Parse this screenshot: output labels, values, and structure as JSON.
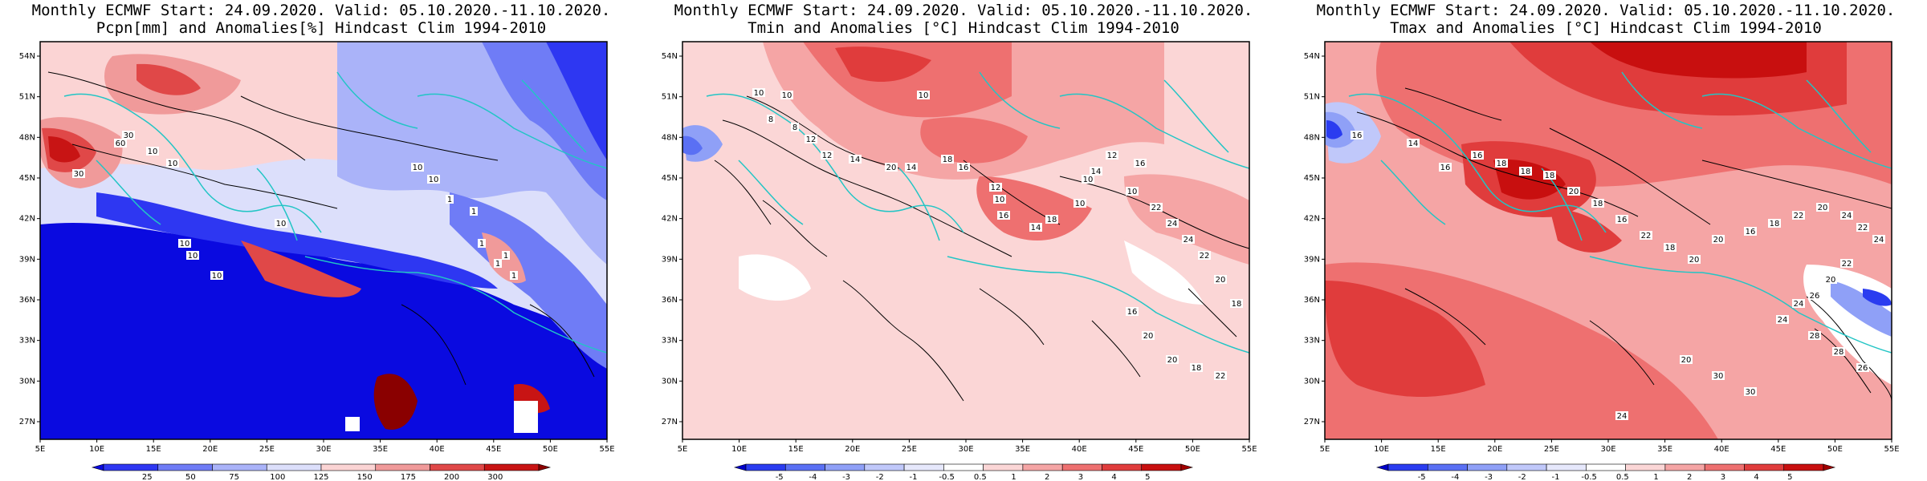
{
  "panels": [
    {
      "title1": "Monthly ECMWF Start: 24.09.2020. Valid: 05.10.2020.-11.10.2020.",
      "title2": "Pcpn[mm] and Anomalies[%] Hindcast Clim 1994-2010",
      "colorbar": {
        "labels": [
          "25",
          "50",
          "75",
          "100",
          "125",
          "150",
          "175",
          "200",
          "300"
        ],
        "colors": [
          "#0a0ae0",
          "#2e37f2",
          "#6f7cf6",
          "#aab3f9",
          "#dcdffb",
          "#fbd4d4",
          "#f09a9a",
          "#e04848",
          "#c81414",
          "#8a0000"
        ]
      },
      "contour_labels": [
        "30",
        "30",
        "60",
        "10",
        "10",
        "10",
        "10",
        "10",
        "10",
        "10",
        "10",
        "1",
        "1",
        "1",
        "1",
        "1",
        "1"
      ]
    },
    {
      "title1": "Monthly ECMWF Start: 24.09.2020. Valid: 05.10.2020.-11.10.2020.",
      "title2": "Tmin and Anomalies [°C] Hindcast Clim 1994-2010",
      "colorbar": {
        "labels": [
          "-5",
          "-4",
          "-3",
          "-2",
          "-1",
          "-0.5",
          "0.5",
          "1",
          "2",
          "3",
          "4",
          "5"
        ],
        "colors": [
          "#0000c8",
          "#2a3cf0",
          "#5a70f4",
          "#8fa0f7",
          "#c0c8fa",
          "#e6e8fc",
          "#ffffff",
          "#fbd6d6",
          "#f5a5a5",
          "#ee7070",
          "#e03c3c",
          "#c80f0f",
          "#a00000"
        ]
      },
      "contour_labels": [
        "10",
        "10",
        "8",
        "8",
        "12",
        "10",
        "12",
        "14",
        "20",
        "14",
        "18",
        "16",
        "12",
        "10",
        "16",
        "14",
        "18",
        "10",
        "10",
        "14",
        "12",
        "10",
        "16",
        "22",
        "24",
        "24",
        "22",
        "20",
        "18",
        "16",
        "20",
        "20",
        "18",
        "22"
      ]
    },
    {
      "title1": "Monthly ECMWF Start: 24.09.2020. Valid: 05.10.2020.-11.10.2020.",
      "title2": "Tmax and Anomalies [°C] Hindcast Clim 1994-2010",
      "colorbar": {
        "labels": [
          "-5",
          "-4",
          "-3",
          "-2",
          "-1",
          "-0.5",
          "0.5",
          "1",
          "2",
          "3",
          "4",
          "5"
        ],
        "colors": [
          "#0000c8",
          "#2a3cf0",
          "#5a70f4",
          "#8fa0f7",
          "#c0c8fa",
          "#e6e8fc",
          "#ffffff",
          "#fbd6d6",
          "#f5a5a5",
          "#ee7070",
          "#e03c3c",
          "#c80f0f",
          "#a00000"
        ]
      },
      "contour_labels": [
        "16",
        "14",
        "16",
        "16",
        "18",
        "18",
        "18",
        "20",
        "18",
        "16",
        "22",
        "18",
        "20",
        "20",
        "16",
        "18",
        "22",
        "20",
        "24",
        "22",
        "24",
        "22",
        "20",
        "26",
        "24",
        "24",
        "28",
        "28",
        "26",
        "20",
        "30",
        "30",
        "24"
      ]
    }
  ],
  "lat_ticks": [
    "54N",
    "51N",
    "48N",
    "45N",
    "42N",
    "39N",
    "36N",
    "33N",
    "30N",
    "27N"
  ],
  "lon_ticks": [
    "5E",
    "10E",
    "15E",
    "20E",
    "25E",
    "30E",
    "35E",
    "40E",
    "45E",
    "50E",
    "55E"
  ],
  "colors": {
    "coast": "#22c5c5",
    "contour": "#000000",
    "frame": "#000000"
  }
}
